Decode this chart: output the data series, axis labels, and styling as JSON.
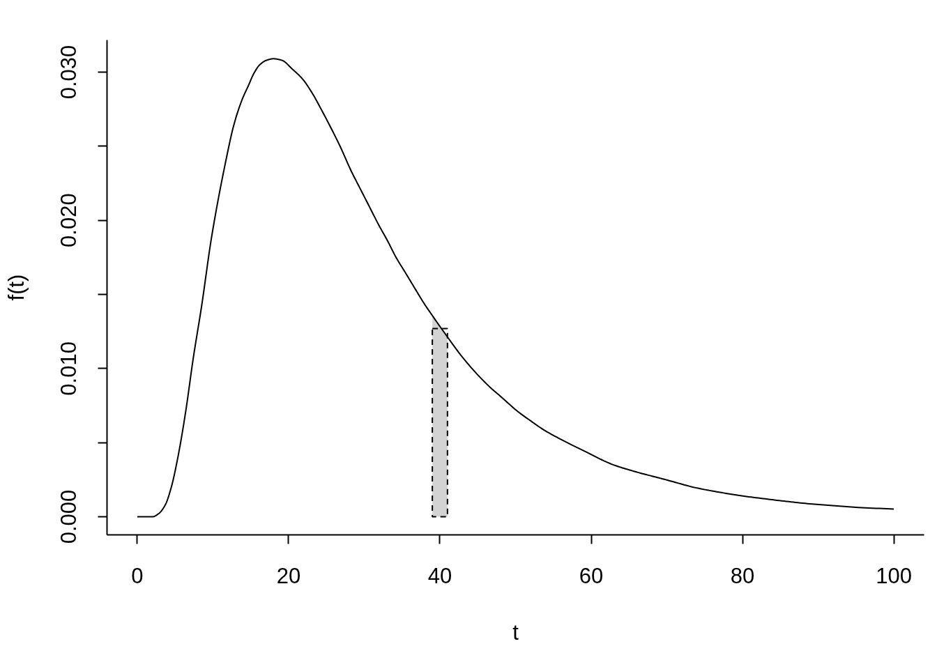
{
  "chart_data": {
    "type": "line",
    "xlabel": "t",
    "ylabel": "f(t)",
    "xlim": [
      -4,
      104
    ],
    "ylim": [
      -0.00122,
      0.03216
    ],
    "xticks": [
      0,
      20,
      40,
      60,
      80,
      100
    ],
    "yticks": [
      {
        "value": 0,
        "label": "0.000"
      },
      {
        "value": 0.005,
        "label": null
      },
      {
        "value": 0.01,
        "label": "0.010"
      },
      {
        "value": 0.015,
        "label": null
      },
      {
        "value": 0.02,
        "label": "0.020"
      },
      {
        "value": 0.025,
        "label": null
      },
      {
        "value": 0.03,
        "label": "0.030"
      }
    ],
    "series": [
      {
        "type": "area",
        "color": "#d3d3d3",
        "x": [
          39,
          40,
          41
        ],
        "values": [
          0.0135,
          0.0128,
          0.0121
        ]
      },
      {
        "type": "histogram",
        "color": "#000000",
        "line_style": "dashed",
        "bins": [
          39,
          41
        ],
        "values": [
          0.0127
        ]
      },
      {
        "color": "#000000",
        "x": [
          0,
          2.0,
          2.8,
          3.7,
          4.5,
          5.4,
          6.4,
          7.4,
          8.5,
          9.8,
          11.7,
          12.8,
          13.9,
          14.7,
          15.4,
          16.2,
          17.1,
          18.0,
          19.1,
          20.5,
          21.9,
          23.1,
          24.3,
          26.8,
          28.3,
          29.4,
          30.6,
          31.9,
          33.1,
          34.2,
          35.4,
          36.7,
          37.9,
          39.1,
          40.2,
          43.4,
          46.5,
          48.3,
          50.1,
          52.0,
          53.8,
          55.7,
          57.5,
          59.4,
          61.2,
          63.0,
          64.9,
          66.7,
          68.6,
          70.0,
          73.8,
          76.9,
          79.9,
          83.0,
          86.1,
          89.2,
          92.2,
          95.3,
          100
        ],
        "values": [
          0,
          0,
          0.0002,
          0.0008,
          0.002,
          0.0041,
          0.0071,
          0.0107,
          0.0142,
          0.0188,
          0.024,
          0.0265,
          0.0282,
          0.0291,
          0.0299,
          0.0305,
          0.0308,
          0.0309,
          0.0308,
          0.0302,
          0.0295,
          0.0286,
          0.0275,
          0.025,
          0.0233,
          0.0222,
          0.021,
          0.0197,
          0.0186,
          0.0175,
          0.0165,
          0.0154,
          0.0144,
          0.0135,
          0.0127,
          0.0105,
          0.0088,
          0.008,
          0.00718,
          0.00647,
          0.00584,
          0.0053,
          0.00483,
          0.00436,
          0.00389,
          0.00349,
          0.00318,
          0.00292,
          0.00267,
          0.00248,
          0.00196,
          0.00166,
          0.00141,
          0.00121,
          0.00102,
          0.00086,
          0.00074,
          0.00063,
          0.00052
        ]
      }
    ]
  }
}
